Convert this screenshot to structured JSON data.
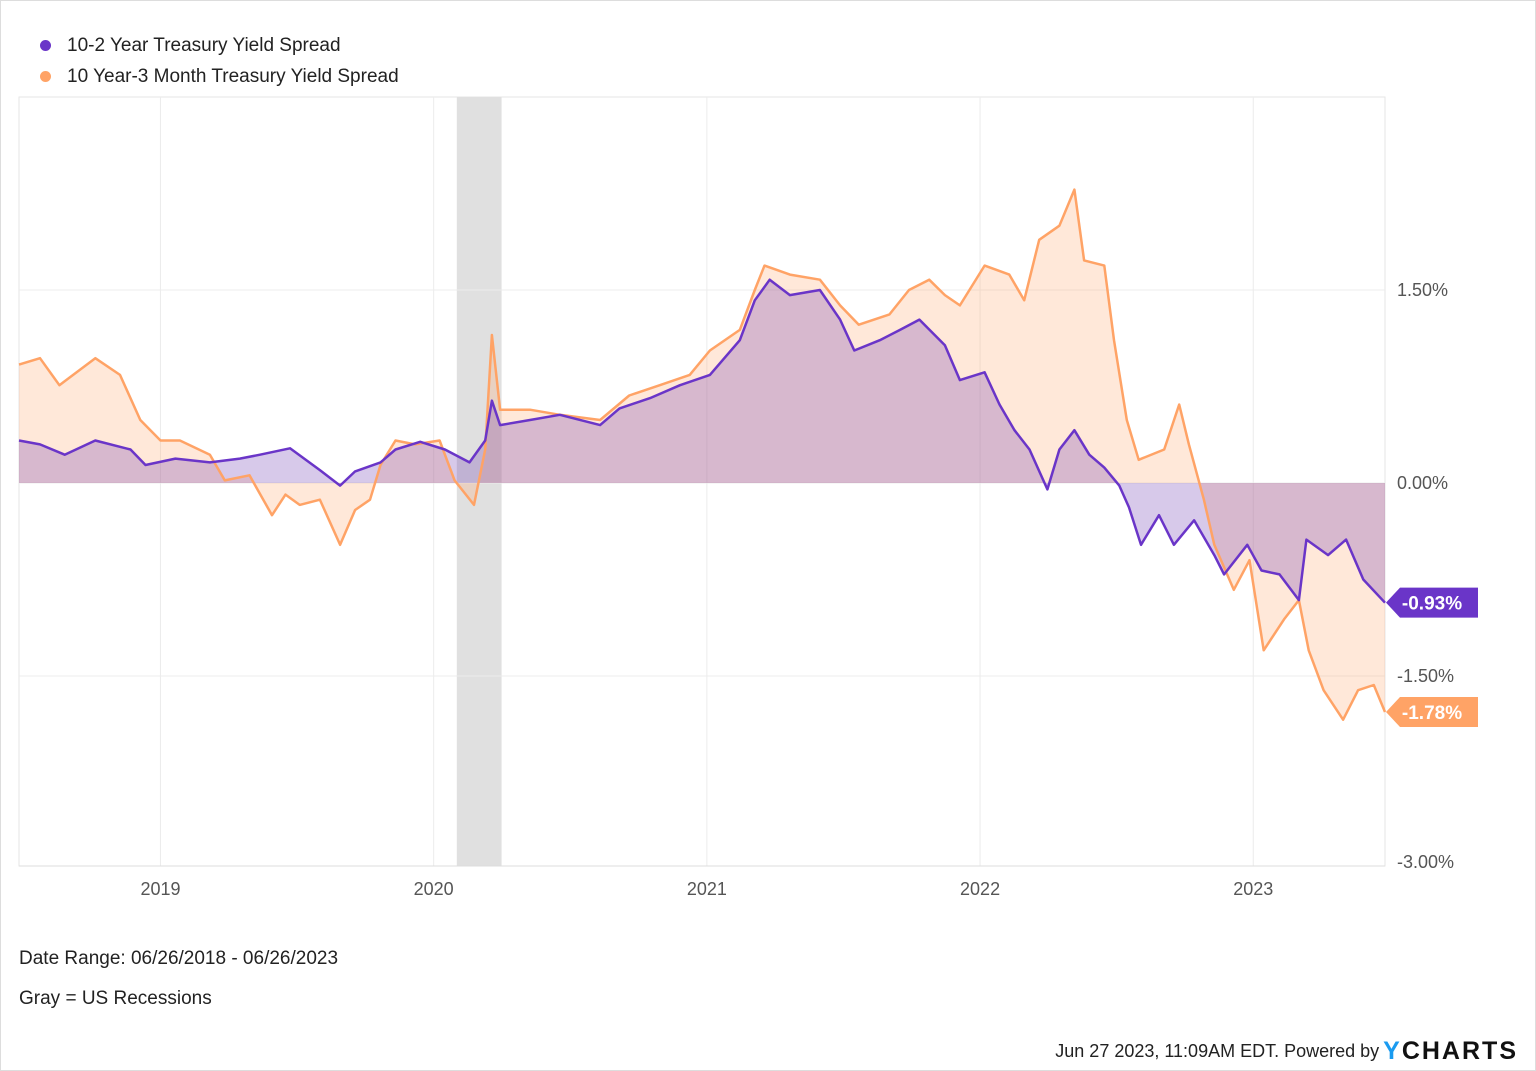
{
  "chart_data": {
    "type": "area",
    "title": "",
    "xlabel": "",
    "ylabel": "",
    "xlim": [
      "2018-06-26",
      "2023-06-26"
    ],
    "ylim": [
      -3,
      3
    ],
    "grid": true,
    "legend_position": "top-left",
    "x_ticks": [
      "2019",
      "2020",
      "2021",
      "2022",
      "2023"
    ],
    "y_ticks": [
      1.5,
      0,
      -1.5,
      -3
    ],
    "y_tick_labels": [
      "1.50%",
      "0.00%",
      "-1.50%",
      "-3.00%"
    ],
    "recessions": [
      {
        "start": "2020-02-01",
        "end": "2020-04-01",
        "color": "#e0e0e0"
      }
    ],
    "series": [
      {
        "name": "10-2 Year Treasury Yield Spread",
        "color": "#6a35c8",
        "last_label": "-0.93%",
        "x": [
          "2018-06-26",
          "2018-07-24",
          "2018-08-26",
          "2018-10-06",
          "2018-11-22",
          "2018-12-12",
          "2019-01-21",
          "2019-03-08",
          "2019-04-17",
          "2019-05-14",
          "2019-06-23",
          "2019-08-02",
          "2019-08-29",
          "2019-09-18",
          "2019-10-22",
          "2019-11-11",
          "2019-12-14",
          "2020-01-16",
          "2020-02-18",
          "2020-03-10",
          "2020-03-19",
          "2020-03-30",
          "2020-05-09",
          "2020-06-18",
          "2020-08-11",
          "2020-09-06",
          "2020-10-17",
          "2020-11-26",
          "2021-01-05",
          "2021-02-14",
          "2021-03-06",
          "2021-03-26",
          "2021-04-22",
          "2021-06-01",
          "2021-06-28",
          "2021-07-17",
          "2021-08-20",
          "2021-09-16",
          "2021-10-12",
          "2021-11-15",
          "2021-12-05",
          "2022-01-07",
          "2022-01-27",
          "2022-02-16",
          "2022-03-08",
          "2022-04-01",
          "2022-04-17",
          "2022-05-07",
          "2022-05-27",
          "2022-06-16",
          "2022-07-06",
          "2022-07-19",
          "2022-08-04",
          "2022-08-28",
          "2022-09-17",
          "2022-10-14",
          "2022-11-10",
          "2022-11-23",
          "2022-12-24",
          "2023-01-12",
          "2023-02-05",
          "2023-03-03",
          "2023-03-13",
          "2023-04-11",
          "2023-05-05",
          "2023-05-28",
          "2023-06-26"
        ],
        "y": [
          0.33,
          0.3,
          0.22,
          0.33,
          0.26,
          0.14,
          0.19,
          0.16,
          0.19,
          0.22,
          0.27,
          0.1,
          -0.02,
          0.09,
          0.16,
          0.26,
          0.32,
          0.26,
          0.16,
          0.33,
          0.64,
          0.45,
          0.49,
          0.53,
          0.45,
          0.58,
          0.66,
          0.76,
          0.84,
          1.11,
          1.42,
          1.58,
          1.46,
          1.5,
          1.27,
          1.03,
          1.11,
          1.19,
          1.27,
          1.07,
          0.8,
          0.86,
          0.61,
          0.41,
          0.26,
          -0.05,
          0.26,
          0.41,
          0.22,
          0.12,
          -0.02,
          -0.19,
          -0.48,
          -0.25,
          -0.48,
          -0.29,
          -0.56,
          -0.71,
          -0.48,
          -0.68,
          -0.71,
          -0.91,
          -0.44,
          -0.56,
          -0.44,
          -0.75,
          -0.93
        ]
      },
      {
        "name": "10 Year-3 Month Treasury Yield Spread",
        "color": "#ffa366",
        "last_label": "-1.78%",
        "x": [
          "2018-06-26",
          "2018-07-24",
          "2018-08-19",
          "2018-10-06",
          "2018-11-08",
          "2018-12-05",
          "2019-01-01",
          "2019-01-27",
          "2019-03-08",
          "2019-03-28",
          "2019-04-30",
          "2019-05-30",
          "2019-06-17",
          "2019-07-06",
          "2019-08-02",
          "2019-08-29",
          "2019-09-18",
          "2019-10-08",
          "2019-10-22",
          "2019-11-11",
          "2019-12-07",
          "2020-01-09",
          "2020-01-29",
          "2020-02-24",
          "2020-03-10",
          "2020-03-19",
          "2020-03-30",
          "2020-05-09",
          "2020-06-18",
          "2020-08-11",
          "2020-09-19",
          "2020-10-30",
          "2020-12-09",
          "2021-01-05",
          "2021-02-14",
          "2021-03-06",
          "2021-03-19",
          "2021-04-22",
          "2021-06-01",
          "2021-06-28",
          "2021-07-23",
          "2021-09-02",
          "2021-09-28",
          "2021-10-25",
          "2021-11-15",
          "2021-12-05",
          "2022-01-07",
          "2022-02-09",
          "2022-03-01",
          "2022-03-21",
          "2022-04-17",
          "2022-05-07",
          "2022-05-20",
          "2022-06-16",
          "2022-06-29",
          "2022-07-16",
          "2022-08-01",
          "2022-09-04",
          "2022-09-24",
          "2022-10-07",
          "2022-10-27",
          "2022-11-10",
          "2022-12-06",
          "2022-12-27",
          "2023-01-15",
          "2023-02-11",
          "2023-03-03",
          "2023-03-16",
          "2023-04-05",
          "2023-05-01",
          "2023-05-21",
          "2023-06-11",
          "2023-06-26"
        ],
        "y": [
          0.92,
          0.97,
          0.76,
          0.97,
          0.84,
          0.49,
          0.33,
          0.33,
          0.22,
          0.02,
          0.06,
          -0.25,
          -0.09,
          -0.17,
          -0.13,
          -0.48,
          -0.21,
          -0.13,
          0.14,
          0.33,
          0.3,
          0.33,
          0.02,
          -0.17,
          0.26,
          1.15,
          0.57,
          0.57,
          0.53,
          0.49,
          0.68,
          0.76,
          0.84,
          1.03,
          1.19,
          1.5,
          1.69,
          1.62,
          1.58,
          1.38,
          1.23,
          1.31,
          1.5,
          1.58,
          1.46,
          1.38,
          1.69,
          1.62,
          1.42,
          1.89,
          2.0,
          2.28,
          1.73,
          1.69,
          1.11,
          0.49,
          0.18,
          0.26,
          0.61,
          0.3,
          -0.13,
          -0.48,
          -0.83,
          -0.6,
          -1.3,
          -1.06,
          -0.91,
          -1.3,
          -1.61,
          -1.84,
          -1.61,
          -1.57,
          -1.78
        ]
      }
    ]
  },
  "notes": {
    "date_range": "Date Range: 06/26/2018 - 06/26/2023",
    "recession_note": "Gray = US Recessions"
  },
  "footer": {
    "timestamp": "Jun 27 2023, 11:09AM EDT. Powered by",
    "logo_y": "Y",
    "logo_rest": "CHARTS"
  }
}
